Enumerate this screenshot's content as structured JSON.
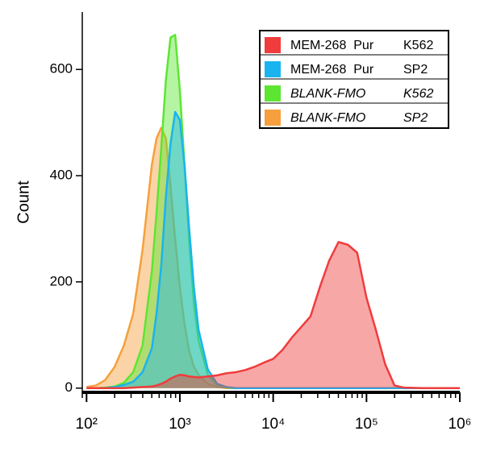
{
  "chart_data": {
    "type": "area",
    "y_label": "Count",
    "xscale": "log",
    "xminor_ticks": true,
    "xlim": [
      90,
      1000000
    ],
    "ylim": [
      -8,
      708
    ],
    "xticks": [
      {
        "value": 100,
        "label": "10²"
      },
      {
        "value": 1000,
        "label": "10³"
      },
      {
        "value": 10000,
        "label": "10⁴"
      },
      {
        "value": 100000,
        "label": "10⁵"
      },
      {
        "value": 1000000,
        "label": "10⁶"
      }
    ],
    "yticks": [
      0,
      200,
      400,
      600
    ],
    "legend": "top-right",
    "x": [
      100,
      126,
      158,
      200,
      251,
      316,
      398,
      501,
      562,
      631,
      708,
      794,
      891,
      1000,
      1122,
      1259,
      1413,
      1585,
      1995,
      2512,
      3162,
      3981,
      5012,
      6310,
      7943,
      10000,
      12589,
      15849,
      19953,
      25119,
      31623,
      39811,
      50119,
      63096,
      79433,
      100000,
      125893,
      158489,
      199526,
      251189,
      398107,
      630957,
      1000000
    ],
    "series": [
      {
        "name": "MEM-268  Pur",
        "cell_line": "K562",
        "font_style": "normal",
        "color": "#f03c3c",
        "values": [
          0,
          0,
          0,
          0,
          0,
          1,
          2,
          3,
          5,
          8,
          12,
          18,
          22,
          25,
          24,
          22,
          21,
          20,
          22,
          24,
          28,
          30,
          34,
          40,
          48,
          55,
          72,
          95,
          115,
          135,
          190,
          240,
          275,
          270,
          255,
          170,
          110,
          45,
          5,
          1,
          0,
          0,
          0
        ]
      },
      {
        "name": "MEM-268  Pur",
        "cell_line": "SP2",
        "font_style": "normal",
        "color": "#19b4f0",
        "values": [
          0,
          0,
          0,
          2,
          6,
          12,
          30,
          75,
          140,
          230,
          360,
          460,
          520,
          505,
          420,
          300,
          190,
          110,
          35,
          8,
          2,
          0,
          0,
          0,
          0,
          0,
          0,
          0,
          0,
          0,
          0,
          0,
          0,
          0,
          0,
          0,
          0,
          0,
          0,
          0,
          0,
          0,
          0
        ]
      },
      {
        "name": "BLANK-FMO",
        "cell_line": "K562",
        "font_style": "italic",
        "color": "#5ce632",
        "values": [
          0,
          0,
          1,
          3,
          10,
          30,
          80,
          220,
          330,
          450,
          580,
          660,
          665,
          560,
          420,
          280,
          160,
          90,
          25,
          5,
          1,
          0,
          0,
          0,
          0,
          0,
          0,
          0,
          0,
          0,
          0,
          0,
          0,
          0,
          0,
          0,
          0,
          0,
          0,
          0,
          0,
          0,
          0
        ]
      },
      {
        "name": "BLANK-FMO",
        "cell_line": "SP2",
        "font_style": "italic",
        "color": "#f5a03c",
        "values": [
          2,
          5,
          15,
          40,
          80,
          140,
          260,
          420,
          470,
          490,
          470,
          380,
          280,
          190,
          120,
          70,
          40,
          25,
          8,
          2,
          0,
          0,
          0,
          0,
          0,
          0,
          0,
          0,
          0,
          0,
          0,
          0,
          0,
          0,
          0,
          0,
          0,
          0,
          0,
          0,
          0,
          0,
          0
        ]
      }
    ]
  }
}
